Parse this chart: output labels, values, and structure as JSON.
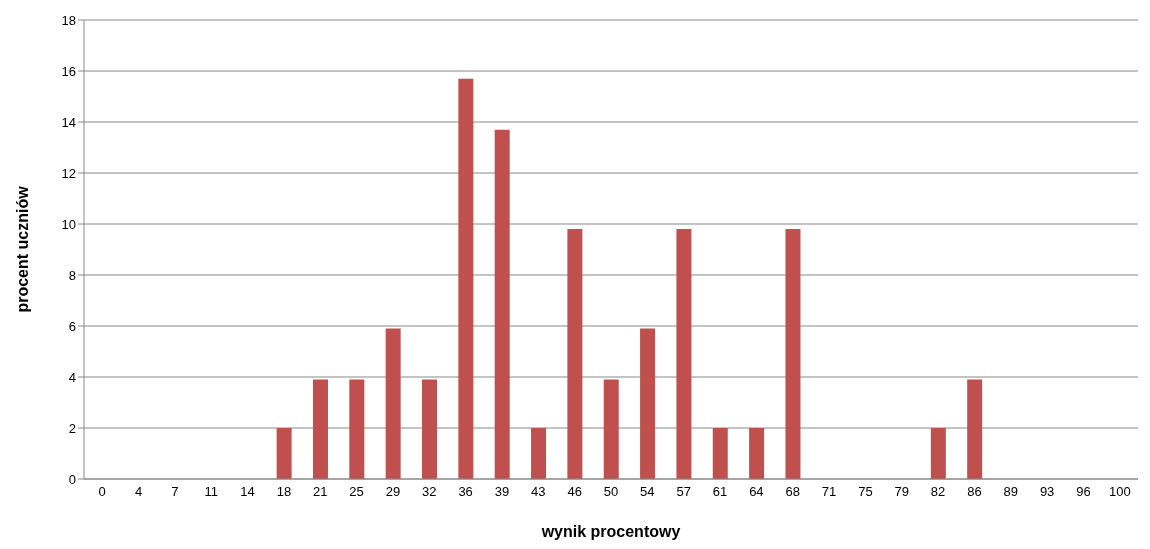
{
  "chart_data": {
    "type": "bar",
    "xlabel": "wynik procentowy",
    "ylabel": "procent uczniów",
    "categories": [
      "0",
      "4",
      "7",
      "11",
      "14",
      "18",
      "21",
      "25",
      "29",
      "32",
      "36",
      "39",
      "43",
      "46",
      "50",
      "54",
      "57",
      "61",
      "64",
      "68",
      "71",
      "75",
      "79",
      "82",
      "86",
      "89",
      "93",
      "96",
      "100"
    ],
    "values": [
      0,
      0,
      0,
      0,
      0,
      2,
      3.9,
      3.9,
      5.9,
      3.9,
      15.7,
      13.7,
      2,
      9.8,
      3.9,
      5.9,
      9.8,
      2,
      2,
      9.8,
      0,
      0,
      0,
      2,
      3.9,
      0,
      0,
      0,
      0
    ],
    "color": "#c0504d",
    "ylim": [
      0,
      18
    ],
    "yticks": [
      0,
      2,
      4,
      6,
      8,
      10,
      12,
      14,
      16,
      18
    ],
    "grid": "y",
    "legend": false
  }
}
